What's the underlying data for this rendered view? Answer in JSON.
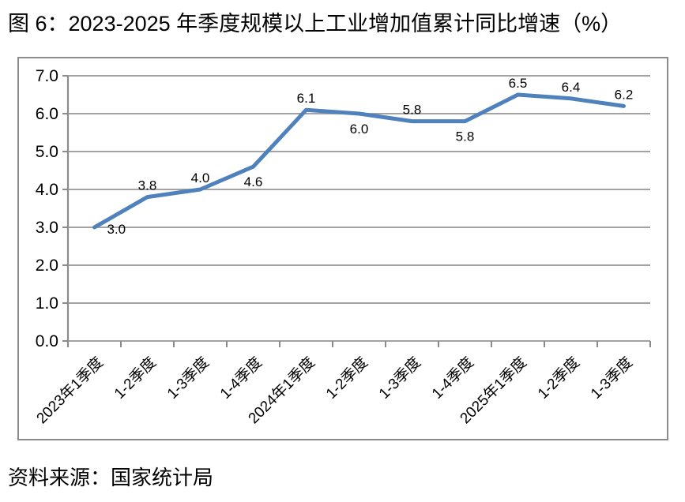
{
  "figure": {
    "title": "图 6：2023-2025 年季度规模以上工业增加值累计同比增速（%）",
    "source": "资料来源：国家统计局"
  },
  "chart_data": {
    "type": "line",
    "title": "图 6：2023-2025 年季度规模以上工业增加值累计同比增速（%）",
    "categories": [
      "2023年1季度",
      "1-2季度",
      "1-3季度",
      "1-4季度",
      "2024年1季度",
      "1-2季度",
      "1-3季度",
      "1-4季度",
      "2025年1季度",
      "1-2季度",
      "1-3季度"
    ],
    "series": [
      {
        "name": "规模以上工业增加值累计同比增速（%）",
        "values": [
          3.0,
          3.8,
          4.0,
          4.6,
          6.1,
          6.0,
          5.8,
          5.8,
          6.5,
          6.4,
          6.2
        ],
        "data_labels": [
          "3.0",
          "3.8",
          "4.0",
          "4.6",
          "6.1",
          "6.0",
          "5.8",
          "5.8",
          "6.5",
          "6.4",
          "6.2"
        ],
        "label_positions": [
          "right",
          "above",
          "above",
          "below",
          "above",
          "below",
          "above",
          "below",
          "above",
          "above",
          "above"
        ]
      }
    ],
    "ylim": [
      0.0,
      7.0
    ],
    "ytick_step": 1.0,
    "ytick_labels": [
      "0.0",
      "1.0",
      "2.0",
      "3.0",
      "4.0",
      "5.0",
      "6.0",
      "7.0"
    ],
    "xlabel": "",
    "ylabel": "",
    "grid": true,
    "legend": "none",
    "x_label_rotation_deg": 45,
    "colors": {
      "line": "#4f81bd",
      "gridline": "#969696",
      "axis": "#8c8c8c",
      "frame_border": "#8c8c8c",
      "text": "#000000"
    },
    "source": "资料来源：国家统计局"
  }
}
